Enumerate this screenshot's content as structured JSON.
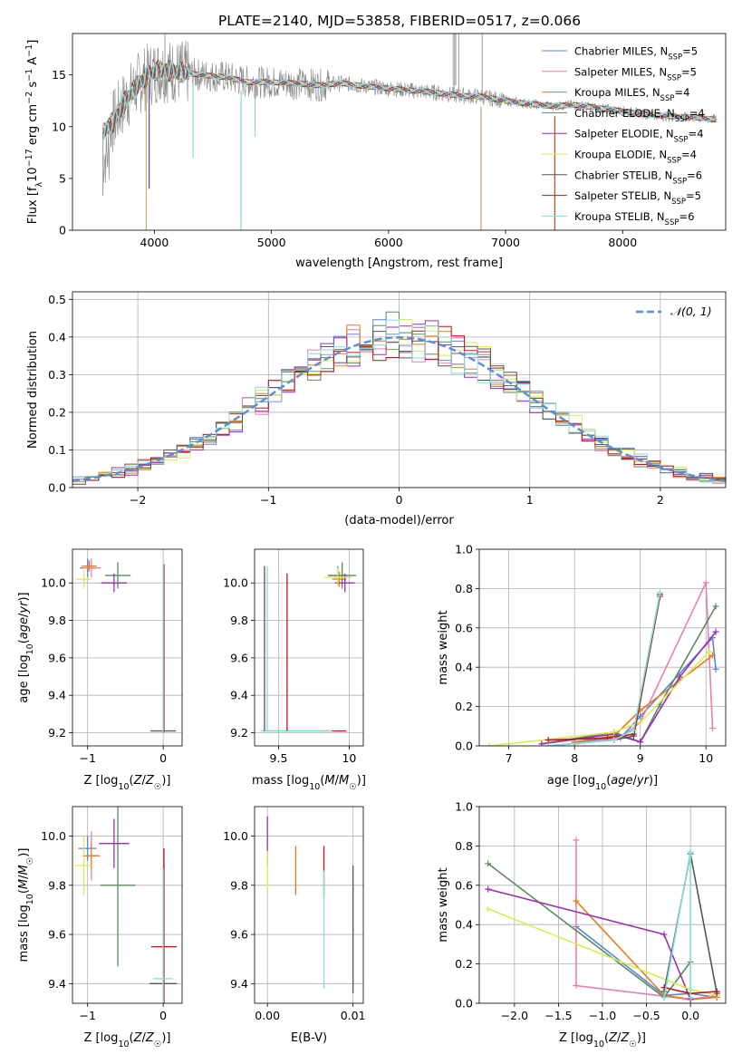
{
  "figure_title": "PLATE=2140, MJD=53858, FIBERID=0517, z=0.066",
  "colors": {
    "Chabrier MILES": "#5b86d8",
    "Salpeter MILES": "#e87fb0",
    "Kroupa MILES": "#e87a1c",
    "Chabrier ELODIE": "#5a8a5e",
    "Salpeter ELODIE": "#9a2fb0",
    "Kroupa ELODIE": "#d8ec55",
    "Chabrier STELIB": "#555555",
    "Salpeter STELIB": "#b81818",
    "Kroupa STELIB": "#86dcdc"
  },
  "chart_data": [
    {
      "id": "spectrum",
      "type": "line",
      "title": "PLATE=2140, MJD=53858, FIBERID=0517, z=0.066",
      "xlabel": "wavelength [Angstrom, rest frame]",
      "ylabel": "Flux [f_λ 10^-17 erg cm^-2 s^-1 A^-1]",
      "xlim": [
        3300,
        8880
      ],
      "ylim": [
        0,
        19
      ],
      "xticks": [
        4000,
        5000,
        6000,
        7000,
        8000
      ],
      "yticks": [
        0,
        5,
        10,
        15
      ],
      "grid": false,
      "legend_position": "top-right",
      "data_color": "#888888",
      "data": {
        "x": [
          3560,
          3650,
          3750,
          3850,
          3950,
          4050,
          4200,
          4400,
          4600,
          4800,
          5000,
          5200,
          5400,
          5600,
          5800,
          6000,
          6200,
          6400,
          6600,
          6800,
          7000,
          7200,
          7400,
          7600,
          7800,
          8000,
          8200,
          8400,
          8600,
          8800
        ],
        "y": [
          9.5,
          10.5,
          12.5,
          14.0,
          15.0,
          15.5,
          15.3,
          15.0,
          14.8,
          14.3,
          14.3,
          14.2,
          14.0,
          14.2,
          13.9,
          13.7,
          13.5,
          13.3,
          13.0,
          12.9,
          12.5,
          12.2,
          12.0,
          12.1,
          11.8,
          11.5,
          11.2,
          11.0,
          10.9,
          10.7
        ]
      },
      "series": [
        {
          "name": "Chabrier MILES, N_SSP=5",
          "legend": "Chabrier MILES, N",
          "sub": "SSP",
          "suffix": "=5"
        },
        {
          "name": "Salpeter MILES, N_SSP=5",
          "legend": "Salpeter MILES, N",
          "sub": "SSP",
          "suffix": "=5"
        },
        {
          "name": "Kroupa MILES, N_SSP=4",
          "legend": "Kroupa MILES, N",
          "sub": "SSP",
          "suffix": "=4"
        },
        {
          "name": "Chabrier ELODIE, N_SSP=4",
          "legend": "Chabrier ELODIE, N",
          "sub": "SSP",
          "suffix": "=4"
        },
        {
          "name": "Salpeter ELODIE, N_SSP=4",
          "legend": "Salpeter ELODIE, N",
          "sub": "SSP",
          "suffix": "=4"
        },
        {
          "name": "Kroupa ELODIE, N_SSP=4",
          "legend": "Kroupa ELODIE, N",
          "sub": "SSP",
          "suffix": "=4"
        },
        {
          "name": "Chabrier STELIB, N_SSP=6",
          "legend": "Chabrier STELIB, N",
          "sub": "SSP",
          "suffix": "=6"
        },
        {
          "name": "Salpeter STELIB, N_SSP=5",
          "legend": "Salpeter STELIB, N",
          "sub": "SSP",
          "suffix": "=5"
        },
        {
          "name": "Kroupa STELIB, N_SSP=6",
          "legend": "Kroupa STELIB, N",
          "sub": "SSP",
          "suffix": "=6"
        }
      ]
    },
    {
      "id": "residuals",
      "type": "step",
      "xlabel": "(data-model)/error",
      "ylabel": "Normed distribution",
      "xlim": [
        -2.5,
        2.5
      ],
      "ylim": [
        0,
        0.52
      ],
      "xticks": [
        -2,
        -1,
        0,
        1,
        2
      ],
      "yticks": [
        0.0,
        0.1,
        0.2,
        0.3,
        0.4,
        0.5
      ],
      "grid": true,
      "legend_position": "top-right",
      "reference": {
        "name": "N(0,1)",
        "label": "𝒩(0, 1)",
        "mean": 0,
        "sigma": 1,
        "color": "#5b8fd8"
      },
      "bin_width": 0.1,
      "bin_start": -2.5
    },
    {
      "id": "age_vs_Z",
      "type": "errorbar",
      "xlabel": "Z [log10(Z/Z☉)]",
      "ylabel": "age [log10(age/yr)]",
      "xlim": [
        -1.2,
        0.25
      ],
      "ylim": [
        9.13,
        10.18
      ],
      "xticks": [
        -1,
        0
      ],
      "yticks": [
        9.2,
        9.4,
        9.6,
        9.8,
        10.0
      ],
      "grid": true,
      "points": [
        {
          "series": "Chabrier MILES",
          "x": -1.0,
          "y": 10.08,
          "xerr": 0.1,
          "yerr": 0.05
        },
        {
          "series": "Salpeter MILES",
          "x": -0.95,
          "y": 10.08,
          "xerr": 0.12,
          "yerr": 0.05
        },
        {
          "series": "Kroupa MILES",
          "x": -0.98,
          "y": 10.09,
          "xerr": 0.1,
          "yerr": 0.03
        },
        {
          "series": "Chabrier ELODIE",
          "x": -0.6,
          "y": 10.04,
          "xerr": 0.17,
          "yerr": 0.07
        },
        {
          "series": "Salpeter ELODIE",
          "x": -0.65,
          "y": 10.0,
          "xerr": 0.17,
          "yerr": 0.05
        },
        {
          "series": "Kroupa ELODIE",
          "x": -1.05,
          "y": 10.02,
          "xerr": 0.1,
          "yerr": 0.05
        },
        {
          "series": "Chabrier STELIB",
          "x": 0.0,
          "y": 9.21,
          "xerr": 0.17,
          "yerr": 0.0
        },
        {
          "series": "Salpeter STELIB",
          "x": 0.01,
          "y": 9.65,
          "xerr": 0.0,
          "yerr": 0.45
        },
        {
          "series": "Kroupa STELIB",
          "x": 0.0,
          "y": 9.65,
          "xerr": 0.0,
          "yerr": 0.45
        }
      ]
    },
    {
      "id": "age_vs_mass",
      "type": "errorbar",
      "xlabel": "mass [log10(M/M☉)]",
      "ylabel": "",
      "xlim": [
        9.33,
        10.1
      ],
      "ylim": [
        9.13,
        10.18
      ],
      "xticks": [
        9.5,
        10.0
      ],
      "yticks": [
        9.2,
        9.4,
        9.6,
        9.8,
        10.0
      ],
      "grid": true,
      "points": [
        {
          "series": "Chabrier MILES",
          "x": 9.92,
          "y": 10.04,
          "xerr": 0.07,
          "yerr": 0.05
        },
        {
          "series": "Salpeter MILES",
          "x": 9.95,
          "y": 10.03,
          "xerr": 0.06,
          "yerr": 0.05
        },
        {
          "series": "Kroupa MILES",
          "x": 9.93,
          "y": 10.02,
          "xerr": 0.05,
          "yerr": 0.04
        },
        {
          "series": "Chabrier ELODIE",
          "x": 9.95,
          "y": 10.04,
          "xerr": 0.1,
          "yerr": 0.07
        },
        {
          "series": "Salpeter ELODIE",
          "x": 9.97,
          "y": 10.0,
          "xerr": 0.07,
          "yerr": 0.05
        },
        {
          "series": "Kroupa ELODIE",
          "x": 9.92,
          "y": 10.03,
          "xerr": 0.1,
          "yerr": 0.05
        },
        {
          "series": "Chabrier STELIB",
          "x": 9.4,
          "y": 9.65,
          "xerr": 0.0,
          "yerr": 0.44
        },
        {
          "series": "Salpeter STELIB",
          "x": 9.56,
          "y": 9.63,
          "xerr": 0.0,
          "yerr": 0.42
        },
        {
          "series": "Kroupa STELIB",
          "x": 9.42,
          "y": 9.65,
          "xerr": 0.0,
          "yerr": 0.44
        }
      ],
      "hlines": [
        {
          "series": "Salpeter STELIB",
          "x0": 9.38,
          "x1": 9.98,
          "y": 9.21
        },
        {
          "series": "Kroupa STELIB",
          "x0": 9.37,
          "x1": 9.88,
          "y": 9.21
        }
      ]
    },
    {
      "id": "mass_weight_vs_age",
      "type": "line",
      "xlabel": "age [log10(age/yr)]",
      "ylabel": "mass weight",
      "xlim": [
        6.55,
        10.3
      ],
      "ylim": [
        0,
        1
      ],
      "xticks": [
        7,
        8,
        9,
        10
      ],
      "yticks": [
        0.0,
        0.2,
        0.4,
        0.6,
        0.8,
        1.0
      ],
      "grid": true,
      "series": [
        {
          "series": "Chabrier MILES",
          "x": [
            8.0,
            8.7,
            9.0,
            10.1,
            10.15
          ],
          "y": [
            0.02,
            0.04,
            0.15,
            0.55,
            0.39
          ]
        },
        {
          "series": "Salpeter MILES",
          "x": [
            8.0,
            8.7,
            9.0,
            10.0,
            10.1
          ],
          "y": [
            0.01,
            0.04,
            0.12,
            0.83,
            0.09
          ]
        },
        {
          "series": "Kroupa MILES",
          "x": [
            8.0,
            8.6,
            9.0,
            10.1
          ],
          "y": [
            0.02,
            0.05,
            0.18,
            0.46
          ]
        },
        {
          "series": "Chabrier ELODIE",
          "x": [
            7.5,
            8.6,
            9.0,
            9.3,
            10.15
          ],
          "y": [
            0.01,
            0.07,
            0.02,
            0.21,
            0.71
          ]
        },
        {
          "series": "Salpeter ELODIE",
          "x": [
            7.5,
            8.6,
            9.0,
            9.6,
            10.15
          ],
          "y": [
            0.01,
            0.06,
            0.02,
            0.35,
            0.58
          ]
        },
        {
          "series": "Kroupa ELODIE",
          "x": [
            6.7,
            8.6,
            9.0,
            10.05
          ],
          "y": [
            0.0,
            0.07,
            0.12,
            0.48
          ]
        },
        {
          "series": "Chabrier STELIB",
          "x": [
            7.6,
            8.6,
            8.9,
            9.3
          ],
          "y": [
            0.0,
            0.03,
            0.05,
            0.76
          ]
        },
        {
          "series": "Salpeter STELIB",
          "x": [
            7.6,
            8.5,
            8.9,
            9.3
          ],
          "y": [
            0.03,
            0.04,
            0.06,
            0.77
          ]
        },
        {
          "series": "Kroupa STELIB",
          "x": [
            7.6,
            8.6,
            8.9,
            9.3
          ],
          "y": [
            0.0,
            0.03,
            0.08,
            0.78
          ]
        }
      ]
    },
    {
      "id": "mass_vs_Z",
      "type": "errorbar",
      "xlabel": "Z [log10(Z/Z☉)]",
      "ylabel": "mass [log10(M/M☉)]",
      "xlim": [
        -1.2,
        0.25
      ],
      "ylim": [
        9.32,
        10.12
      ],
      "xticks": [
        -1,
        0
      ],
      "yticks": [
        9.4,
        9.6,
        9.8,
        10.0
      ],
      "grid": true,
      "points": [
        {
          "series": "Chabrier MILES",
          "x": -1.0,
          "y": 9.95,
          "xerr": 0.12,
          "yerr": 0.05
        },
        {
          "series": "Salpeter MILES",
          "x": -0.95,
          "y": 9.92,
          "xerr": 0.12,
          "yerr": 0.1
        },
        {
          "series": "Kroupa MILES",
          "x": -0.95,
          "y": 9.92,
          "xerr": 0.1,
          "yerr": 0.05
        },
        {
          "series": "Chabrier ELODIE",
          "x": -0.6,
          "y": 9.8,
          "xerr": 0.23,
          "yerr": 0.33
        },
        {
          "series": "Salpeter ELODIE",
          "x": -0.65,
          "y": 9.97,
          "xerr": 0.2,
          "yerr": 0.1
        },
        {
          "series": "Kroupa ELODIE",
          "x": -1.05,
          "y": 9.88,
          "xerr": 0.12,
          "yerr": 0.12
        },
        {
          "series": "Chabrier STELIB",
          "x": 0.0,
          "y": 9.4,
          "xerr": 0.18,
          "yerr": 0.05
        },
        {
          "series": "Salpeter STELIB",
          "x": 0.01,
          "y": 9.55,
          "xerr": 0.17,
          "yerr": 0.4
        },
        {
          "series": "Kroupa STELIB",
          "x": 0.0,
          "y": 9.42,
          "xerr": 0.13,
          "yerr": 0.45
        }
      ]
    },
    {
      "id": "mass_vs_EBV",
      "type": "errorbar",
      "xlabel": "E(B-V)",
      "ylabel": "",
      "xlim": [
        -0.0015,
        0.0112
      ],
      "ylim": [
        9.32,
        10.12
      ],
      "xticks": [
        0.0,
        0.01
      ],
      "xticklabels": [
        "0.00",
        "0.01"
      ],
      "yticks": [
        9.4,
        9.6,
        9.8,
        10.0
      ],
      "grid": true,
      "points": [
        {
          "series": "Salpeter ELODIE",
          "x": 0.0,
          "y": 9.98,
          "xerr": 0,
          "yerr": 0.1
        },
        {
          "series": "Kroupa ELODIE",
          "x": 0.0,
          "y": 9.86,
          "xerr": 0,
          "yerr": 0.08
        },
        {
          "series": "Kroupa MILES",
          "x": 0.0033,
          "y": 9.86,
          "xerr": 0,
          "yerr": 0.1
        },
        {
          "series": "Salpeter STELIB",
          "x": 0.0066,
          "y": 9.86,
          "xerr": 0,
          "yerr": 0.1
        },
        {
          "series": "Kroupa STELIB",
          "x": 0.0066,
          "y": 9.62,
          "xerr": 0,
          "yerr": 0.24
        },
        {
          "series": "Chabrier STELIB",
          "x": 0.01,
          "y": 9.62,
          "xerr": 0,
          "yerr": 0.26
        }
      ]
    },
    {
      "id": "mass_weight_vs_Z",
      "type": "line",
      "xlabel": "Z [log10(Z/Z☉)]",
      "ylabel": "mass weight",
      "xlim": [
        -2.4,
        0.4
      ],
      "ylim": [
        0,
        1
      ],
      "xticks": [
        -2.0,
        -1.5,
        -1.0,
        -0.5,
        0.0
      ],
      "xticklabels": [
        "−2.0",
        "−1.5",
        "−1.0",
        "−0.5",
        "0.0"
      ],
      "yticks": [
        0.0,
        0.2,
        0.4,
        0.6,
        0.8,
        1.0
      ],
      "grid": true,
      "series": [
        {
          "series": "Chabrier MILES",
          "x": [
            -1.3,
            -0.3,
            0.0,
            0.3
          ],
          "y": [
            0.39,
            0.04,
            0.05,
            0.03
          ]
        },
        {
          "series": "Salpeter MILES",
          "x": [
            -1.3,
            -1.3,
            0.0,
            0.3
          ],
          "y": [
            0.83,
            0.09,
            0.02,
            0.04
          ]
        },
        {
          "series": "Kroupa MILES",
          "x": [
            -1.3,
            -0.3,
            0.0,
            0.3
          ],
          "y": [
            0.52,
            0.04,
            0.02,
            0.03
          ]
        },
        {
          "series": "Chabrier ELODIE",
          "x": [
            -2.3,
            -0.3,
            0.0
          ],
          "y": [
            0.71,
            0.03,
            0.21
          ]
        },
        {
          "series": "Salpeter ELODIE",
          "x": [
            -2.3,
            -0.3,
            0.0
          ],
          "y": [
            0.58,
            0.35,
            0.02
          ]
        },
        {
          "series": "Kroupa ELODIE",
          "x": [
            -2.3,
            0.0,
            0.3
          ],
          "y": [
            0.48,
            0.07,
            0.04
          ]
        },
        {
          "series": "Chabrier STELIB",
          "x": [
            -0.3,
            0.0,
            0.3
          ],
          "y": [
            0.06,
            0.76,
            0.05
          ]
        },
        {
          "series": "Salpeter STELIB",
          "x": [
            -0.3,
            0.0,
            0.3
          ],
          "y": [
            0.08,
            0.05,
            0.06
          ]
        },
        {
          "series": "Kroupa STELIB",
          "x": [
            -0.3,
            0.0,
            0.0
          ],
          "y": [
            0.03,
            0.77,
            0.03
          ]
        }
      ]
    }
  ]
}
